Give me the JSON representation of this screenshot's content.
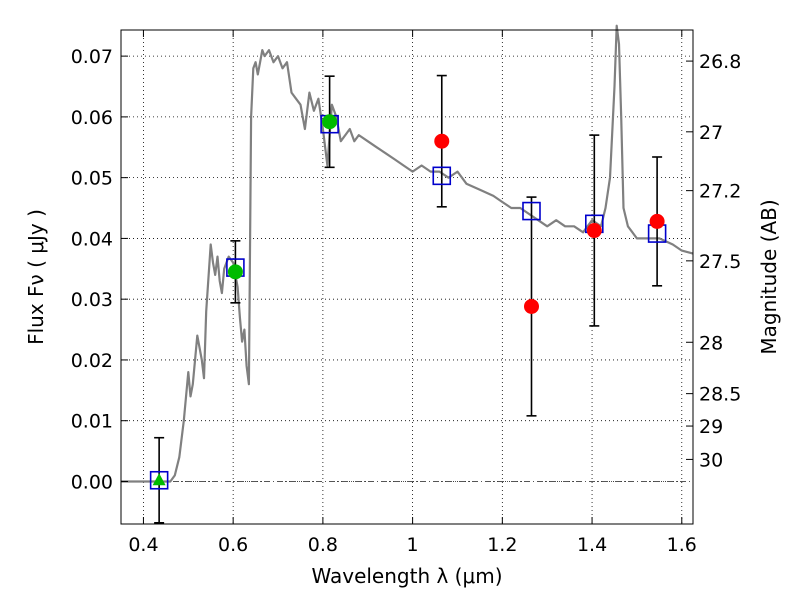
{
  "chart_data": {
    "type": "scatter",
    "title": "",
    "xlabel": "Wavelength  λ (μm)",
    "ylabel": "Flux  Fν  ( μJy )",
    "y2label": "Magnitude (AB)",
    "xlim": [
      0.35,
      1.625
    ],
    "ylim": [
      -0.007,
      0.0743
    ],
    "grid": true,
    "legend": "none",
    "x_ticks": [
      {
        "value": 0.4,
        "label": "0.4"
      },
      {
        "value": 0.6,
        "label": "0.6"
      },
      {
        "value": 0.8,
        "label": "0.8"
      },
      {
        "value": 1.0,
        "label": "1"
      },
      {
        "value": 1.2,
        "label": "1.2"
      },
      {
        "value": 1.4,
        "label": "1.4"
      },
      {
        "value": 1.6,
        "label": "1.6"
      }
    ],
    "y_ticks": [
      {
        "value": 0.0,
        "label": "0.00"
      },
      {
        "value": 0.01,
        "label": "0.01"
      },
      {
        "value": 0.02,
        "label": "0.02"
      },
      {
        "value": 0.03,
        "label": "0.03"
      },
      {
        "value": 0.04,
        "label": "0.04"
      },
      {
        "value": 0.05,
        "label": "0.05"
      },
      {
        "value": 0.06,
        "label": "0.06"
      },
      {
        "value": 0.07,
        "label": "0.07"
      }
    ],
    "y2_ticks": [
      {
        "value": 26.8,
        "label": "26.8"
      },
      {
        "value": 27,
        "label": "27"
      },
      {
        "value": 27.2,
        "label": "27.2"
      },
      {
        "value": 27.5,
        "label": "27.5"
      },
      {
        "value": 28,
        "label": "28"
      },
      {
        "value": 28.5,
        "label": "28.5"
      },
      {
        "value": 29,
        "label": "29"
      },
      {
        "value": 30,
        "label": "30"
      }
    ],
    "colors": {
      "model": "#808080",
      "model_photometry": "#0000cc",
      "detections": "#00bb00",
      "measurements": "#ff0000",
      "errorbars": "#000000",
      "zero_line": "#555555"
    },
    "series": [
      {
        "kind": "line",
        "x": [
          0.35,
          0.46,
          0.47,
          0.48,
          0.49,
          0.5,
          0.505,
          0.51,
          0.52,
          0.53,
          0.535,
          0.54,
          0.55,
          0.555,
          0.56,
          0.565,
          0.57,
          0.575,
          0.58,
          0.59,
          0.6,
          0.61,
          0.615,
          0.62,
          0.625,
          0.63,
          0.635,
          0.64,
          0.645,
          0.65,
          0.655,
          0.66,
          0.665,
          0.67,
          0.68,
          0.69,
          0.7,
          0.71,
          0.72,
          0.73,
          0.74,
          0.75,
          0.76,
          0.77,
          0.78,
          0.79,
          0.8,
          0.81,
          0.82,
          0.83,
          0.84,
          0.85,
          0.86,
          0.87,
          0.88,
          0.9,
          0.92,
          0.94,
          0.96,
          0.98,
          1.0,
          1.02,
          1.04,
          1.06,
          1.08,
          1.1,
          1.12,
          1.15,
          1.18,
          1.2,
          1.22,
          1.24,
          1.26,
          1.28,
          1.3,
          1.32,
          1.34,
          1.36,
          1.38,
          1.4,
          1.42,
          1.43,
          1.44,
          1.45,
          1.455,
          1.46,
          1.465,
          1.47,
          1.48,
          1.49,
          1.5,
          1.52,
          1.55,
          1.58,
          1.6,
          1.625
        ],
        "y": [
          0.0,
          0.0,
          0.001,
          0.004,
          0.01,
          0.018,
          0.014,
          0.016,
          0.024,
          0.02,
          0.017,
          0.028,
          0.039,
          0.036,
          0.034,
          0.037,
          0.033,
          0.031,
          0.035,
          0.037,
          0.036,
          0.032,
          0.027,
          0.023,
          0.025,
          0.019,
          0.016,
          0.06,
          0.068,
          0.069,
          0.067,
          0.069,
          0.071,
          0.07,
          0.071,
          0.069,
          0.07,
          0.068,
          0.069,
          0.064,
          0.063,
          0.062,
          0.058,
          0.064,
          0.061,
          0.063,
          0.058,
          0.052,
          0.062,
          0.06,
          0.056,
          0.057,
          0.058,
          0.056,
          0.057,
          0.056,
          0.055,
          0.054,
          0.053,
          0.052,
          0.051,
          0.052,
          0.051,
          0.051,
          0.05,
          0.051,
          0.049,
          0.048,
          0.047,
          0.046,
          0.045,
          0.045,
          0.044,
          0.043,
          0.042,
          0.043,
          0.042,
          0.042,
          0.041,
          0.043,
          0.042,
          0.045,
          0.05,
          0.065,
          0.075,
          0.072,
          0.06,
          0.045,
          0.042,
          0.041,
          0.04,
          0.04,
          0.04,
          0.039,
          0.038,
          0.0375
        ]
      },
      {
        "kind": "open-square",
        "x": [
          0.435,
          0.605,
          0.815,
          1.065,
          1.265,
          1.405,
          1.545
        ],
        "y": [
          0.0002,
          0.0352,
          0.0588,
          0.0503,
          0.0445,
          0.0424,
          0.0408
        ]
      },
      {
        "kind": "filled-circle",
        "x": [
          0.605,
          0.815
        ],
        "y": [
          0.0345,
          0.0592
        ],
        "err": [
          0.0051,
          0.0075
        ]
      },
      {
        "kind": "triangle",
        "x": [
          0.435
        ],
        "y": [
          0.0002
        ],
        "err": [
          0.007
        ]
      },
      {
        "kind": "filled-circle-red",
        "x": [
          1.065,
          1.265,
          1.405,
          1.545
        ],
        "y": [
          0.056,
          0.0288,
          0.0413,
          0.0428
        ],
        "err": [
          0.0108,
          0.018,
          0.0157,
          0.0106
        ]
      }
    ]
  }
}
